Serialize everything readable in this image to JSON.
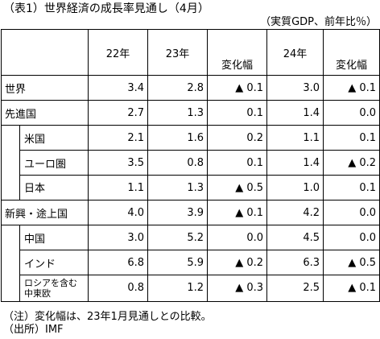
{
  "title": "（表1）世界経済の成長率見通し（4月）",
  "unit": "（実質GDP、前年比％）",
  "headers": {
    "y22": "22年",
    "y23": "23年",
    "change23": "変化幅",
    "y24": "24年",
    "change24": "変化幅"
  },
  "rows": [
    {
      "region": "世界",
      "y22": "3.4",
      "y23": "2.8",
      "c23": "▲ 0.1",
      "y24": "3.0",
      "c24": "▲ 0.1"
    },
    {
      "region": "先進国",
      "y22": "2.7",
      "y23": "1.3",
      "c23": "0.1",
      "y24": "1.4",
      "c24": "0.0"
    },
    {
      "region": "米国",
      "y22": "2.1",
      "y23": "1.6",
      "c23": "0.2",
      "y24": "1.1",
      "c24": "0.1"
    },
    {
      "region": "ユーロ圏",
      "y22": "3.5",
      "y23": "0.8",
      "c23": "0.1",
      "y24": "1.4",
      "c24": "▲ 0.2"
    },
    {
      "region": "日本",
      "y22": "1.1",
      "y23": "1.3",
      "c23": "▲ 0.5",
      "y24": "1.0",
      "c24": "0.1"
    },
    {
      "region": "新興・途上国",
      "y22": "4.0",
      "y23": "3.9",
      "c23": "▲ 0.1",
      "y24": "4.2",
      "c24": "0.0"
    },
    {
      "region": "中国",
      "y22": "3.0",
      "y23": "5.2",
      "c23": "0.0",
      "y24": "4.5",
      "c24": "0.0"
    },
    {
      "region": "インド",
      "y22": "6.8",
      "y23": "5.9",
      "c23": "▲ 0.2",
      "y24": "6.3",
      "c24": "▲ 0.5"
    },
    {
      "region": "ロシアを含む中東欧",
      "y22": "0.8",
      "y23": "1.2",
      "c23": "▲ 0.3",
      "y24": "2.5",
      "c24": "▲ 0.1"
    }
  ],
  "notes": {
    "note": "（注）変化幅は、23年1月見通しとの比較。",
    "source": "（出所）IMF"
  }
}
